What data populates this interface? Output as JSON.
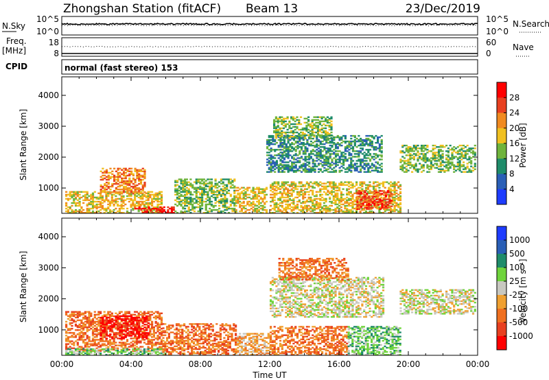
{
  "header": {
    "station": "Zhongshan Station (fitACF)",
    "beam": "Beam 13",
    "date": "23/Dec/2019"
  },
  "panels": {
    "nsky": {
      "label": "N.Sky",
      "ticks_left": [
        "10^5",
        "10^0"
      ],
      "ticks_right": [
        "10^5",
        "10^0"
      ],
      "right_label": "N.Search"
    },
    "freq": {
      "label_top": "Freq.",
      "label_unit": "[MHz]",
      "ticks_left": [
        "18",
        "8"
      ],
      "ticks_right": [
        "60",
        "0"
      ],
      "right_label": "Nave"
    },
    "cpid": {
      "label": "CPID",
      "mode": "normal (fast stereo) 153"
    }
  },
  "chart_data": [
    {
      "type": "heatmap",
      "name": "power",
      "ylabel": "Slant Range [km]",
      "y_ticks": [
        1000,
        2000,
        3000,
        4000
      ],
      "ylim": [
        180,
        4600
      ],
      "xlim": [
        0,
        24
      ],
      "colorbar": {
        "label": "Power [dB]",
        "ticks": [
          "4",
          "8",
          "12",
          "16",
          "20",
          "24",
          "28"
        ],
        "colors": [
          "#1e3cff",
          "#2a5fb6",
          "#1f8c6a",
          "#6fb43c",
          "#f0c020",
          "#f08a20",
          "#e84020",
          "#ff0000"
        ]
      },
      "regions": [
        {
          "t0": 0.2,
          "t1": 5.8,
          "r0": 180,
          "r1": 900,
          "level": 4
        },
        {
          "t0": 2.2,
          "t1": 4.8,
          "r0": 800,
          "r1": 1650,
          "level": 5
        },
        {
          "t0": 4.2,
          "t1": 6.5,
          "r0": 180,
          "r1": 400,
          "level": 7
        },
        {
          "t0": 6.5,
          "t1": 10.0,
          "r0": 180,
          "r1": 1300,
          "level": 3
        },
        {
          "t0": 10.0,
          "t1": 11.8,
          "r0": 180,
          "r1": 1000,
          "level": 4
        },
        {
          "t0": 11.8,
          "t1": 18.5,
          "r0": 1500,
          "r1": 2700,
          "level": 2
        },
        {
          "t0": 12.2,
          "t1": 15.5,
          "r0": 2600,
          "r1": 3300,
          "level": 3
        },
        {
          "t0": 12.0,
          "t1": 19.5,
          "r0": 180,
          "r1": 1200,
          "level": 4
        },
        {
          "t0": 17.0,
          "t1": 19.0,
          "r0": 300,
          "r1": 900,
          "level": 6
        },
        {
          "t0": 19.5,
          "t1": 23.8,
          "r0": 1500,
          "r1": 2400,
          "level": 3
        }
      ]
    },
    {
      "type": "heatmap",
      "name": "velocity",
      "ylabel": "Slant Range [km]",
      "y_ticks": [
        1000,
        2000,
        3000,
        4000
      ],
      "ylim": [
        180,
        4600
      ],
      "xlim": [
        0,
        24
      ],
      "x_ticks": [
        "00:00",
        "04:00",
        "08:00",
        "12:00",
        "16:00",
        "20:00",
        "00:00"
      ],
      "xlabel": "Time UT",
      "colorbar": {
        "label": "Velocity [m s⁻¹]",
        "ticks": [
          "1000",
          "500",
          "100",
          "25",
          "-25",
          "-100",
          "-500",
          "-1000"
        ],
        "colors": [
          "#1e3cff",
          "#2a5fb6",
          "#1f8c6a",
          "#6fd43c",
          "#c8c8c0",
          "#f0a030",
          "#f07020",
          "#e84020",
          "#ff0000"
        ]
      },
      "regions": [
        {
          "t0": 0.2,
          "t1": 5.8,
          "r0": 300,
          "r1": 1600,
          "level": 6
        },
        {
          "t0": 2.2,
          "t1": 5.0,
          "r0": 700,
          "r1": 1450,
          "level": 8
        },
        {
          "t0": 0.2,
          "t1": 6.0,
          "r0": 180,
          "r1": 400,
          "level": 3
        },
        {
          "t0": 5.8,
          "t1": 10.0,
          "r0": 180,
          "r1": 1200,
          "level": 6
        },
        {
          "t0": 10.0,
          "t1": 12.0,
          "r0": 180,
          "r1": 900,
          "level": 5
        },
        {
          "t0": 12.0,
          "t1": 18.5,
          "r0": 1400,
          "r1": 2700,
          "level": 4
        },
        {
          "t0": 12.5,
          "t1": 16.5,
          "r0": 2600,
          "r1": 3300,
          "level": 6
        },
        {
          "t0": 12.0,
          "t1": 16.5,
          "r0": 180,
          "r1": 1100,
          "level": 6
        },
        {
          "t0": 16.5,
          "t1": 19.5,
          "r0": 180,
          "r1": 1100,
          "level": 3
        },
        {
          "t0": 19.5,
          "t1": 23.8,
          "r0": 1500,
          "r1": 2300,
          "level": 4
        }
      ]
    }
  ]
}
